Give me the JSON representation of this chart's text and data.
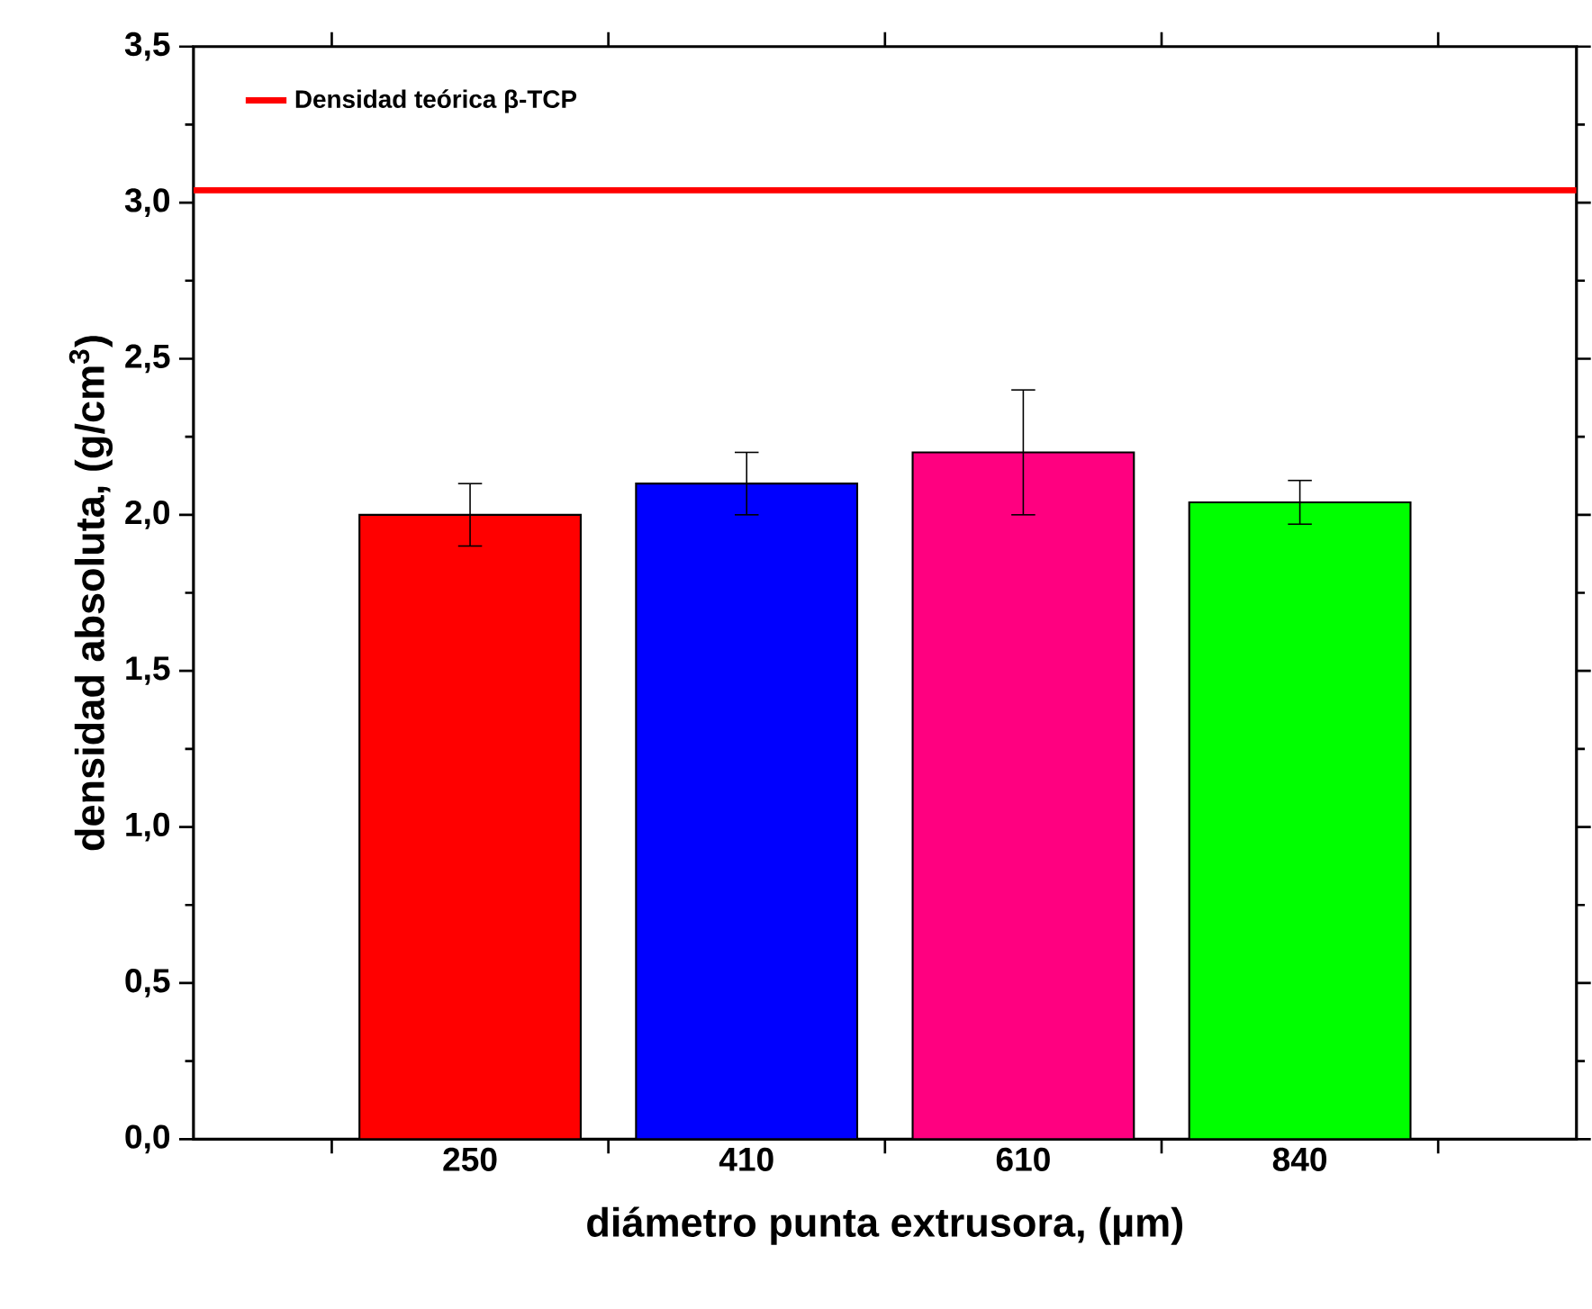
{
  "chart_data": {
    "type": "bar",
    "xlabel": "diámetro punta extrusora, (µm)",
    "ylabel": "densidad absoluta, (g/cm$^{3}$)",
    "categories": [
      "250",
      "410",
      "610",
      "840"
    ],
    "values": [
      2.0,
      2.1,
      2.2,
      2.04
    ],
    "errors": [
      0.1,
      0.1,
      0.2,
      0.07
    ],
    "colors": [
      "#ff0000",
      "#0000ff",
      "#ff0080",
      "#00ff00"
    ],
    "ylim": [
      0,
      3.5
    ],
    "yticks": [
      {
        "value": 0,
        "label": "0,0"
      },
      {
        "value": 0.5,
        "label": "0,5"
      },
      {
        "value": 1,
        "label": "1,0"
      },
      {
        "value": 1.5,
        "label": "1,5"
      },
      {
        "value": 2,
        "label": "2,0"
      },
      {
        "value": 2.5,
        "label": "2,5"
      },
      {
        "value": 3,
        "label": "3,0"
      },
      {
        "value": 3.5,
        "label": "3,5"
      }
    ],
    "ref_lines": [
      {
        "axis": "y",
        "value": 3.04,
        "label": "Densidad teórica β-TCP",
        "color": "#ff0000",
        "line_style": "solid"
      }
    ],
    "legend": "top left",
    "grid": false
  }
}
